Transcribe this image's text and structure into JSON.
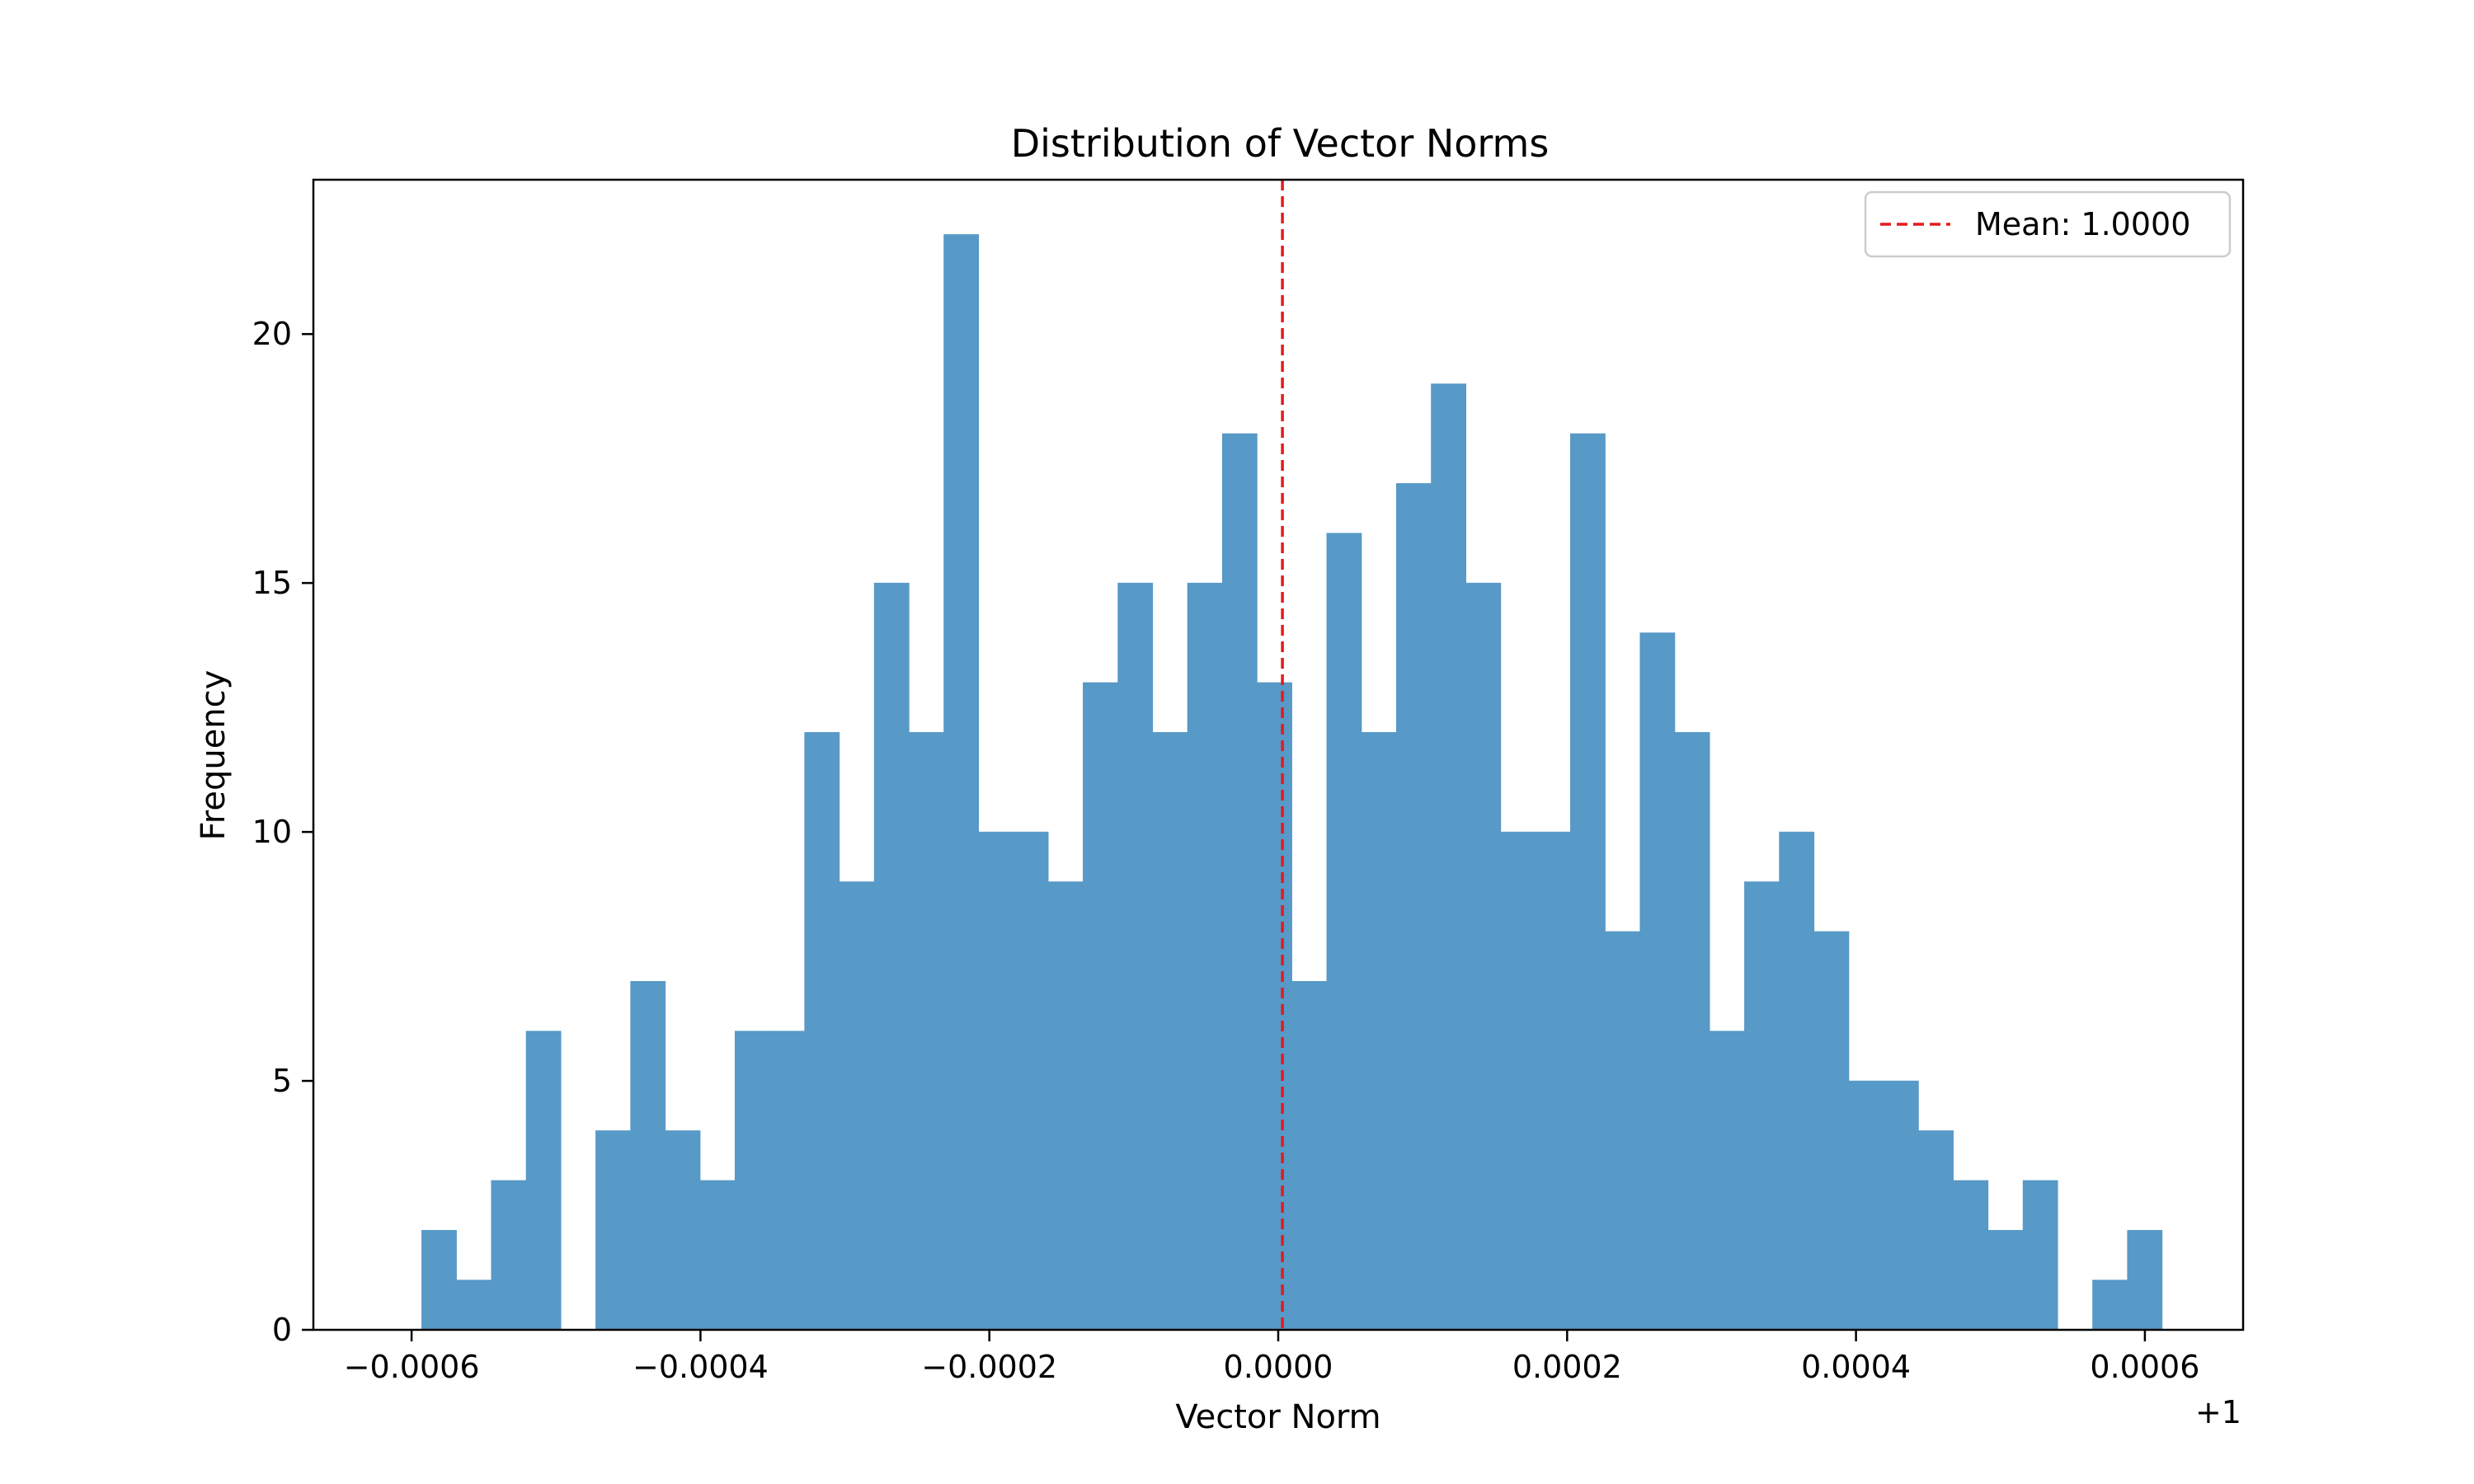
{
  "chart_data": {
    "type": "bar",
    "title": "Distribution of Vector Norms",
    "xlabel": "Vector Norm",
    "ylabel": "Frequency",
    "x_offset_label": "+1",
    "bin_start": -0.000593,
    "bin_width": 2.41e-05,
    "values": [
      2,
      1,
      3,
      6,
      0,
      4,
      7,
      4,
      3,
      6,
      6,
      12,
      9,
      15,
      12,
      22,
      10,
      10,
      9,
      13,
      15,
      12,
      15,
      18,
      13,
      7,
      16,
      12,
      17,
      19,
      15,
      10,
      10,
      18,
      8,
      14,
      12,
      6,
      9,
      10,
      8,
      5,
      5,
      4,
      3,
      2,
      3,
      0,
      1,
      2
    ],
    "xlim": [
      -0.000668,
      0.000668
    ],
    "ylim": [
      0,
      23.1
    ],
    "x_ticks": [
      -0.0006,
      -0.0004,
      -0.0002,
      0.0,
      0.0002,
      0.0004,
      0.0006
    ],
    "x_tick_labels": [
      "−0.0006",
      "−0.0004",
      "−0.0002",
      "0.0000",
      "0.0002",
      "0.0004",
      "0.0006"
    ],
    "y_ticks": [
      0,
      5,
      10,
      15,
      20
    ],
    "y_tick_labels": [
      "0",
      "5",
      "10",
      "15",
      "20"
    ],
    "bar_color": "#5799c7",
    "mean_line": {
      "x": 2.9e-06,
      "label": "Mean: 1.0000",
      "color": "#e41a1c"
    },
    "grid": false,
    "legend_position": "top-right"
  }
}
